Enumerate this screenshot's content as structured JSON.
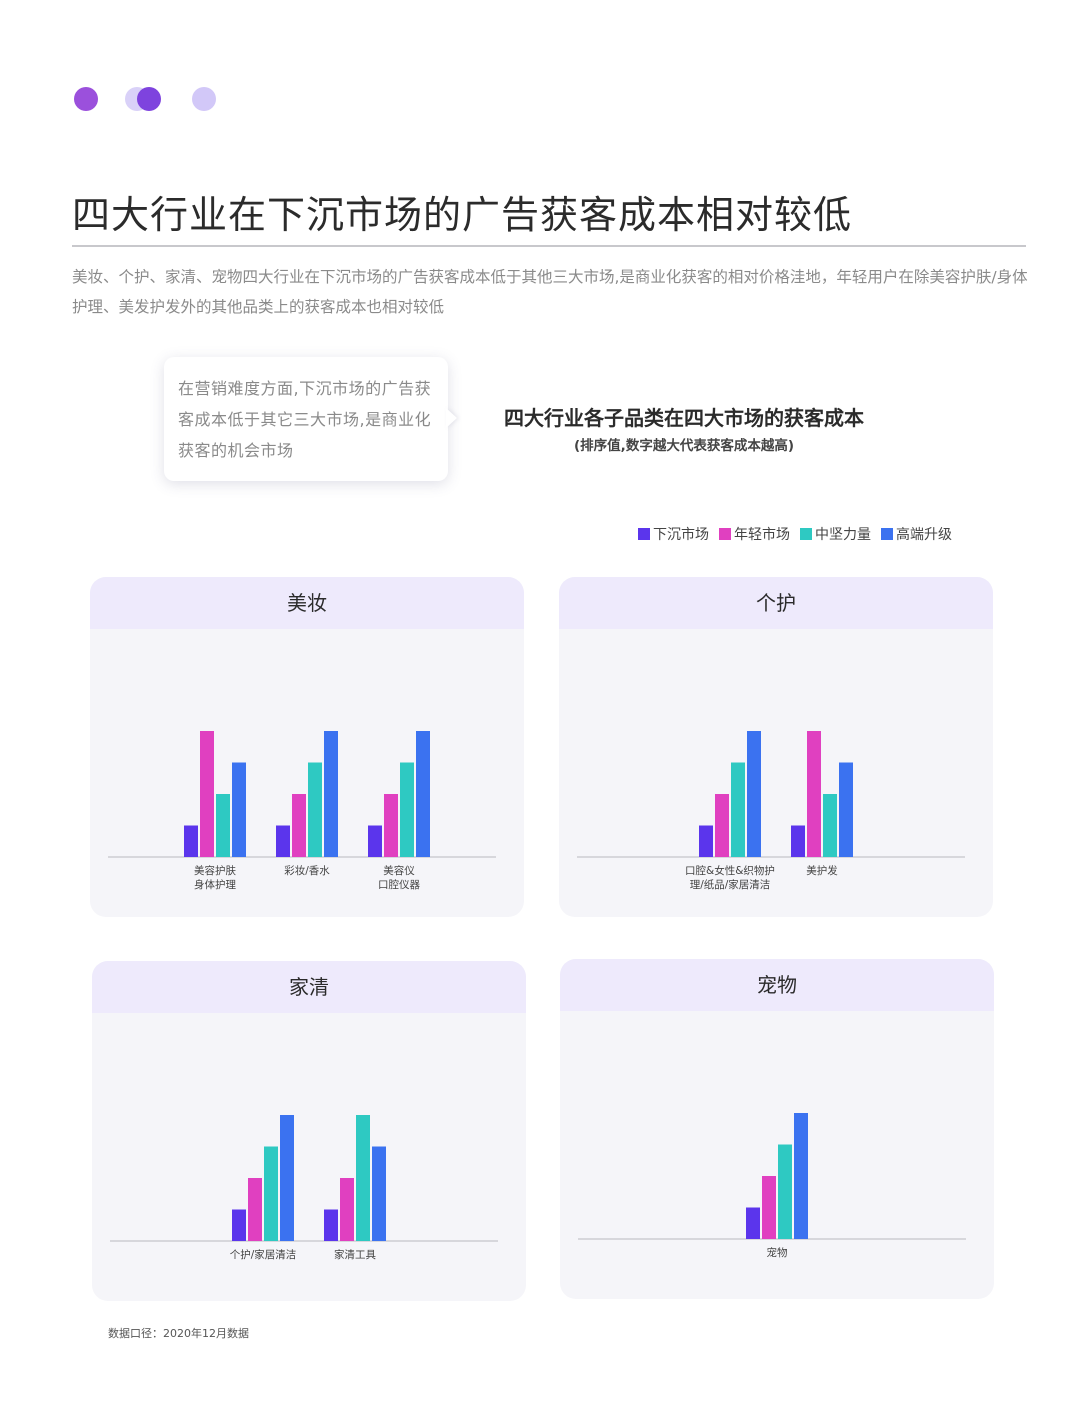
{
  "page": {
    "title": "四大行业在下沉市场的广告获客成本相对较低",
    "intro": "美妆、个护、家清、宠物四大行业在下沉市场的广告获客成本低于其他三大市场,是商业化获客的相对价格洼地，年轻用户在除美容护肤/身体护理、美发护发外的其他品类上的获客成本也相对较低",
    "callout": "在营销难度方面,下沉市场的广告获客成本低于其它三大市场,是商业化获客的机会市场",
    "footnote": "数据口径：2020年12月数据"
  },
  "colors": {
    "dot1": "#9b50dc",
    "dot2a": "#d9d1f8",
    "dot2b": "#7e43de",
    "dot3": "#d2c8f8",
    "axis": "#c5c5cc"
  },
  "chart_data": {
    "title": "四大行业各子品类在四大市场的获客成本",
    "subtitle": "(排序值,数字越大代表获客成本越高)",
    "type": "bar",
    "ylim": [
      0,
      4
    ],
    "series": [
      {
        "name": "下沉市场",
        "color": "#5b35ec"
      },
      {
        "name": "年轻市场",
        "color": "#e040c0"
      },
      {
        "name": "中坚力量",
        "color": "#2ec9c2"
      },
      {
        "name": "高端升级",
        "color": "#3b72f0"
      }
    ],
    "panels": [
      {
        "title": "美妆",
        "categories": [
          [
            "美容护肤",
            "身体护理"
          ],
          [
            "彩妆/香水"
          ],
          [
            "美容仪",
            "口腔仪器"
          ]
        ],
        "values": [
          [
            1,
            4,
            2,
            3
          ],
          [
            1,
            2,
            3,
            4
          ],
          [
            1,
            2,
            3,
            4
          ]
        ]
      },
      {
        "title": "个护",
        "categories": [
          [
            "口腔&女性&织物护",
            "理/纸品/家居清洁"
          ],
          [
            "美护发"
          ]
        ],
        "values": [
          [
            1,
            2,
            3,
            4
          ],
          [
            1,
            4,
            2,
            3
          ]
        ]
      },
      {
        "title": "家清",
        "categories": [
          [
            "个护/家居清洁"
          ],
          [
            "家清工具"
          ]
        ],
        "values": [
          [
            1,
            2,
            3,
            4
          ],
          [
            1,
            2,
            4,
            3
          ]
        ]
      },
      {
        "title": "宠物",
        "categories": [
          [
            "宠物"
          ]
        ],
        "values": [
          [
            1,
            2,
            3,
            4
          ]
        ]
      }
    ]
  }
}
